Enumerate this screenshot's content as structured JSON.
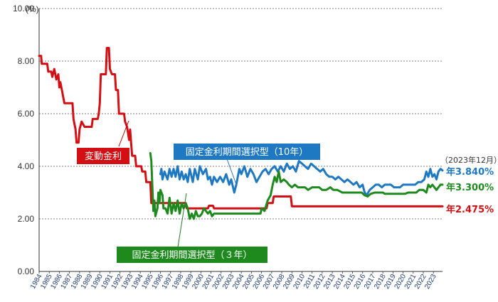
{
  "chart_data": {
    "type": "line",
    "title": "",
    "ylabel": "(%)",
    "xlabel": "",
    "ylim": [
      0,
      10
    ],
    "xlim": [
      1984,
      2023.9
    ],
    "y_ticks": [
      "0.00",
      "2.00",
      "4.00",
      "6.00",
      "8.00",
      "10.00"
    ],
    "y_tick_values": [
      0,
      2,
      4,
      6,
      8,
      10
    ],
    "x_ticks": [
      "1984",
      "1985",
      "1986",
      "1987",
      "1988",
      "1989",
      "1990",
      "1991",
      "1992",
      "1993",
      "1994",
      "1995",
      "1996",
      "1997",
      "1998",
      "1999",
      "2000",
      "2001",
      "2002",
      "2003",
      "2004",
      "2005",
      "2006",
      "2007",
      "2008",
      "2009",
      "2010",
      "2011",
      "2012",
      "2013",
      "2014",
      "2015",
      "2016",
      "2017",
      "2018",
      "2019",
      "2020",
      "2021",
      "2022",
      "2023"
    ],
    "grid": "horizontal-dashed",
    "note": "（2023年12月）",
    "series": [
      {
        "name": "変動金利",
        "color": "#d40f14",
        "end_label": "年2.475%",
        "points": [
          [
            1984.0,
            8.2
          ],
          [
            1984.2,
            8.2
          ],
          [
            1984.25,
            7.9
          ],
          [
            1984.8,
            7.9
          ],
          [
            1984.9,
            7.6
          ],
          [
            1985.2,
            7.6
          ],
          [
            1985.3,
            7.4
          ],
          [
            1985.5,
            7.7
          ],
          [
            1985.7,
            7.3
          ],
          [
            1985.9,
            7.5
          ],
          [
            1986.0,
            7.0
          ],
          [
            1986.1,
            7.2
          ],
          [
            1986.3,
            6.8
          ],
          [
            1986.5,
            6.4
          ],
          [
            1987.3,
            6.4
          ],
          [
            1987.4,
            5.8
          ],
          [
            1987.6,
            5.4
          ],
          [
            1987.7,
            4.9
          ],
          [
            1987.9,
            4.9
          ],
          [
            1988.0,
            5.4
          ],
          [
            1988.2,
            5.7
          ],
          [
            1988.5,
            5.5
          ],
          [
            1989.2,
            5.5
          ],
          [
            1989.3,
            5.8
          ],
          [
            1989.8,
            5.8
          ],
          [
            1989.9,
            6.0
          ],
          [
            1990.0,
            6.4
          ],
          [
            1990.1,
            7.5
          ],
          [
            1990.6,
            7.5
          ],
          [
            1990.7,
            8.5
          ],
          [
            1990.9,
            8.5
          ],
          [
            1991.0,
            7.7
          ],
          [
            1991.2,
            7.5
          ],
          [
            1991.5,
            7.5
          ],
          [
            1991.6,
            6.9
          ],
          [
            1991.8,
            6.9
          ],
          [
            1991.9,
            6.0
          ],
          [
            1992.4,
            6.0
          ],
          [
            1992.5,
            5.7
          ],
          [
            1992.7,
            5.5
          ],
          [
            1992.9,
            5.0
          ],
          [
            1993.0,
            5.4
          ],
          [
            1993.1,
            4.9
          ],
          [
            1993.2,
            4.4
          ],
          [
            1993.5,
            4.4
          ],
          [
            1993.6,
            4.0
          ],
          [
            1994.1,
            4.0
          ],
          [
            1994.2,
            3.8
          ],
          [
            1994.5,
            3.8
          ],
          [
            1994.6,
            3.4
          ],
          [
            1995.0,
            3.4
          ],
          [
            1995.1,
            2.6
          ],
          [
            1998.5,
            2.6
          ],
          [
            1998.6,
            2.4
          ],
          [
            2000.7,
            2.4
          ],
          [
            2000.8,
            2.5
          ],
          [
            2001.2,
            2.5
          ],
          [
            2001.3,
            2.4
          ],
          [
            2006.5,
            2.4
          ],
          [
            2006.6,
            2.6
          ],
          [
            2007.1,
            2.6
          ],
          [
            2007.2,
            2.85
          ],
          [
            2008.9,
            2.85
          ],
          [
            2009.0,
            2.475
          ],
          [
            2023.9,
            2.475
          ]
        ]
      },
      {
        "name": "固定金利期間選択型（10年）",
        "color": "#1f78c2",
        "end_label": "年3.840%",
        "points": [
          [
            1996.0,
            3.7
          ],
          [
            1996.1,
            3.9
          ],
          [
            1996.2,
            3.5
          ],
          [
            1996.4,
            3.8
          ],
          [
            1996.7,
            3.5
          ],
          [
            1996.9,
            3.9
          ],
          [
            1997.1,
            3.6
          ],
          [
            1997.3,
            3.9
          ],
          [
            1997.5,
            3.6
          ],
          [
            1997.7,
            4.0
          ],
          [
            1997.9,
            3.5
          ],
          [
            1998.1,
            3.8
          ],
          [
            1998.3,
            3.5
          ],
          [
            1998.5,
            3.7
          ],
          [
            1998.7,
            3.4
          ],
          [
            1998.9,
            3.9
          ],
          [
            1999.2,
            3.4
          ],
          [
            1999.4,
            3.9
          ],
          [
            1999.7,
            3.5
          ],
          [
            1999.9,
            4.0
          ],
          [
            2000.2,
            3.7
          ],
          [
            2000.5,
            3.9
          ],
          [
            2000.7,
            3.5
          ],
          [
            2000.9,
            3.6
          ],
          [
            2001.1,
            3.3
          ],
          [
            2001.3,
            3.6
          ],
          [
            2001.6,
            3.4
          ],
          [
            2001.9,
            3.6
          ],
          [
            2002.2,
            3.4
          ],
          [
            2002.5,
            3.7
          ],
          [
            2002.8,
            3.3
          ],
          [
            2003.0,
            3.5
          ],
          [
            2003.3,
            3.0
          ],
          [
            2003.5,
            3.3
          ],
          [
            2003.8,
            3.9
          ],
          [
            2004.0,
            3.7
          ],
          [
            2004.3,
            4.0
          ],
          [
            2004.6,
            3.6
          ],
          [
            2004.9,
            3.9
          ],
          [
            2005.2,
            3.7
          ],
          [
            2005.5,
            3.4
          ],
          [
            2005.8,
            3.6
          ],
          [
            2006.1,
            3.8
          ],
          [
            2006.4,
            3.9
          ],
          [
            2006.7,
            3.7
          ],
          [
            2007.0,
            3.9
          ],
          [
            2007.3,
            4.0
          ],
          [
            2007.6,
            3.8
          ],
          [
            2007.9,
            4.0
          ],
          [
            2008.2,
            3.8
          ],
          [
            2008.5,
            4.1
          ],
          [
            2008.8,
            3.9
          ],
          [
            2009.1,
            4.0
          ],
          [
            2009.4,
            3.8
          ],
          [
            2009.7,
            4.2
          ],
          [
            2010.0,
            4.1
          ],
          [
            2010.3,
            4.0
          ],
          [
            2010.6,
            3.9
          ],
          [
            2010.9,
            4.1
          ],
          [
            2011.2,
            4.0
          ],
          [
            2011.5,
            3.9
          ],
          [
            2011.8,
            3.8
          ],
          [
            2012.1,
            3.9
          ],
          [
            2012.4,
            3.7
          ],
          [
            2012.7,
            3.6
          ],
          [
            2013.0,
            3.6
          ],
          [
            2013.3,
            3.5
          ],
          [
            2013.6,
            3.6
          ],
          [
            2013.9,
            3.5
          ],
          [
            2014.2,
            3.4
          ],
          [
            2014.5,
            3.5
          ],
          [
            2014.8,
            3.4
          ],
          [
            2015.1,
            3.3
          ],
          [
            2015.4,
            3.4
          ],
          [
            2015.7,
            3.2
          ],
          [
            2016.0,
            3.3
          ],
          [
            2016.2,
            3.0
          ],
          [
            2016.4,
            2.9
          ],
          [
            2016.7,
            3.1
          ],
          [
            2017.0,
            3.2
          ],
          [
            2017.3,
            3.3
          ],
          [
            2017.6,
            3.3
          ],
          [
            2017.9,
            3.2
          ],
          [
            2018.2,
            3.3
          ],
          [
            2018.5,
            3.3
          ],
          [
            2018.8,
            3.3
          ],
          [
            2019.1,
            3.2
          ],
          [
            2019.4,
            3.2
          ],
          [
            2019.7,
            3.2
          ],
          [
            2020.0,
            3.3
          ],
          [
            2020.3,
            3.3
          ],
          [
            2020.6,
            3.3
          ],
          [
            2020.9,
            3.3
          ],
          [
            2021.2,
            3.3
          ],
          [
            2021.5,
            3.4
          ],
          [
            2021.8,
            3.4
          ],
          [
            2022.1,
            3.5
          ],
          [
            2022.3,
            3.8
          ],
          [
            2022.5,
            3.6
          ],
          [
            2022.7,
            3.9
          ],
          [
            2022.9,
            3.6
          ],
          [
            2023.1,
            3.7
          ],
          [
            2023.3,
            3.5
          ],
          [
            2023.5,
            3.8
          ],
          [
            2023.7,
            3.9
          ],
          [
            2023.9,
            3.84
          ]
        ]
      },
      {
        "name": "固定金利期間選択型（３年）",
        "color": "#1e8a1e",
        "end_label": "年3.300%",
        "points": [
          [
            1995.0,
            4.5
          ],
          [
            1995.1,
            4.2
          ],
          [
            1995.2,
            3.2
          ],
          [
            1995.3,
            2.3
          ],
          [
            1995.4,
            2.7
          ],
          [
            1995.5,
            2.1
          ],
          [
            1995.7,
            2.4
          ],
          [
            1995.8,
            3.0
          ],
          [
            1995.9,
            2.6
          ],
          [
            1996.0,
            3.1
          ],
          [
            1996.2,
            2.9
          ],
          [
            1996.3,
            2.4
          ],
          [
            1996.5,
            2.4
          ],
          [
            1996.7,
            2.2
          ],
          [
            1996.9,
            2.8
          ],
          [
            1997.1,
            2.2
          ],
          [
            1997.3,
            2.6
          ],
          [
            1997.5,
            2.3
          ],
          [
            1997.7,
            2.7
          ],
          [
            1997.9,
            2.2
          ],
          [
            1998.1,
            2.6
          ],
          [
            1998.3,
            2.4
          ],
          [
            1998.5,
            2.6
          ],
          [
            1998.7,
            2.4
          ],
          [
            1998.9,
            2.0
          ],
          [
            1999.1,
            2.2
          ],
          [
            1999.3,
            2.0
          ],
          [
            1999.5,
            2.3
          ],
          [
            1999.7,
            2.1
          ],
          [
            1999.9,
            2.1
          ],
          [
            2000.1,
            2.2
          ],
          [
            2000.3,
            2.4
          ],
          [
            2000.5,
            2.3
          ],
          [
            2000.7,
            2.2
          ],
          [
            2000.9,
            2.3
          ],
          [
            2001.1,
            2.1
          ],
          [
            2001.3,
            2.2
          ],
          [
            2001.7,
            2.2
          ],
          [
            2005.9,
            2.2
          ],
          [
            2006.0,
            2.4
          ],
          [
            2006.3,
            2.3
          ],
          [
            2006.6,
            2.7
          ],
          [
            2006.9,
            2.9
          ],
          [
            2007.1,
            3.3
          ],
          [
            2007.3,
            3.6
          ],
          [
            2007.5,
            3.4
          ],
          [
            2007.7,
            3.8
          ],
          [
            2007.9,
            3.4
          ],
          [
            2008.2,
            3.5
          ],
          [
            2008.5,
            3.4
          ],
          [
            2008.7,
            3.3
          ],
          [
            2009.0,
            3.2
          ],
          [
            2009.3,
            3.3
          ],
          [
            2009.6,
            3.2
          ],
          [
            2009.9,
            3.2
          ],
          [
            2010.3,
            3.2
          ],
          [
            2010.6,
            3.1
          ],
          [
            2011.0,
            3.2
          ],
          [
            2011.3,
            3.2
          ],
          [
            2011.7,
            3.2
          ],
          [
            2012.0,
            3.1
          ],
          [
            2012.4,
            3.1
          ],
          [
            2012.8,
            3.2
          ],
          [
            2013.1,
            3.1
          ],
          [
            2013.5,
            3.1
          ],
          [
            2014.0,
            3.0
          ],
          [
            2015.0,
            3.0
          ],
          [
            2015.9,
            3.0
          ],
          [
            2016.2,
            2.9
          ],
          [
            2016.5,
            2.85
          ],
          [
            2016.8,
            2.95
          ],
          [
            2017.2,
            3.0
          ],
          [
            2018.0,
            3.0
          ],
          [
            2018.2,
            2.95
          ],
          [
            2020.2,
            2.95
          ],
          [
            2020.5,
            3.0
          ],
          [
            2021.3,
            3.0
          ],
          [
            2021.6,
            3.1
          ],
          [
            2022.0,
            3.1
          ],
          [
            2022.3,
            3.0
          ],
          [
            2022.5,
            3.3
          ],
          [
            2022.7,
            3.2
          ],
          [
            2022.9,
            3.3
          ],
          [
            2023.1,
            3.2
          ],
          [
            2023.3,
            3.1
          ],
          [
            2023.5,
            3.2
          ],
          [
            2023.7,
            3.3
          ],
          [
            2023.9,
            3.3
          ]
        ]
      }
    ]
  }
}
